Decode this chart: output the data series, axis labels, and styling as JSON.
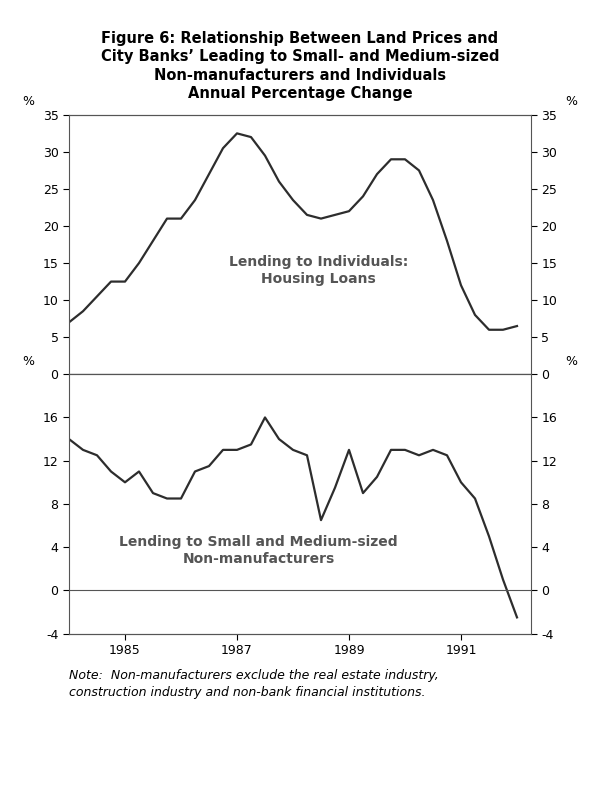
{
  "title_lines": [
    "Figure 6: Relationship Between Land Prices and",
    "City Banks’ Leading to Small- and Medium-sized",
    "Non-manufacturers and Individuals",
    "Annual Percentage Change"
  ],
  "note": "Note:  Non-manufacturers exclude the real estate industry,\nconstruction industry and non-bank financial institutions.",
  "top_chart": {
    "label": "Lending to Individuals:\nHousing Loans",
    "ylim": [
      0,
      35
    ],
    "yticks": [
      0,
      5,
      10,
      15,
      20,
      25,
      30,
      35
    ],
    "x": [
      1984.0,
      1984.25,
      1984.5,
      1984.75,
      1985.0,
      1985.25,
      1985.5,
      1985.75,
      1986.0,
      1986.25,
      1986.5,
      1986.75,
      1987.0,
      1987.25,
      1987.5,
      1987.75,
      1988.0,
      1988.25,
      1988.5,
      1988.75,
      1989.0,
      1989.25,
      1989.5,
      1989.75,
      1990.0,
      1990.25,
      1990.5,
      1990.75,
      1991.0,
      1991.25,
      1991.5,
      1991.75,
      1992.0
    ],
    "y": [
      7.0,
      8.5,
      10.5,
      12.5,
      12.5,
      15.0,
      18.0,
      21.0,
      21.0,
      23.5,
      27.0,
      30.5,
      32.5,
      32.0,
      29.5,
      26.0,
      23.5,
      21.5,
      21.0,
      21.5,
      22.0,
      24.0,
      27.0,
      29.0,
      29.0,
      27.5,
      23.5,
      18.0,
      12.0,
      8.0,
      6.0,
      6.0,
      6.5
    ]
  },
  "bottom_chart": {
    "label": "Lending to Small and Medium-sized\nNon-manufacturers",
    "ylim": [
      -4,
      20
    ],
    "yticks": [
      -4,
      0,
      4,
      8,
      12,
      16
    ],
    "x": [
      1984.0,
      1984.25,
      1984.5,
      1984.75,
      1985.0,
      1985.25,
      1985.5,
      1985.75,
      1986.0,
      1986.25,
      1986.5,
      1986.75,
      1987.0,
      1987.25,
      1987.5,
      1987.75,
      1988.0,
      1988.25,
      1988.5,
      1988.75,
      1989.0,
      1989.25,
      1989.5,
      1989.75,
      1990.0,
      1990.25,
      1990.5,
      1990.75,
      1991.0,
      1991.25,
      1991.5,
      1991.75,
      1992.0
    ],
    "y": [
      14.0,
      13.0,
      12.5,
      11.0,
      10.0,
      11.0,
      9.0,
      8.5,
      8.5,
      11.0,
      11.5,
      13.0,
      13.0,
      13.5,
      16.0,
      14.0,
      13.0,
      12.5,
      6.5,
      9.5,
      13.0,
      9.0,
      10.5,
      13.0,
      13.0,
      12.5,
      13.0,
      12.5,
      10.0,
      8.5,
      5.0,
      1.0,
      -2.5
    ]
  },
  "xlim": [
    1984.0,
    1992.25
  ],
  "xticks": [
    1985,
    1987,
    1989,
    1991
  ],
  "line_color": "#2d2d2d",
  "line_width": 1.6,
  "bg_color": "#ffffff",
  "label_fontsize": 10,
  "tick_fontsize": 9,
  "title_fontsize": 10.5,
  "note_fontsize": 9
}
